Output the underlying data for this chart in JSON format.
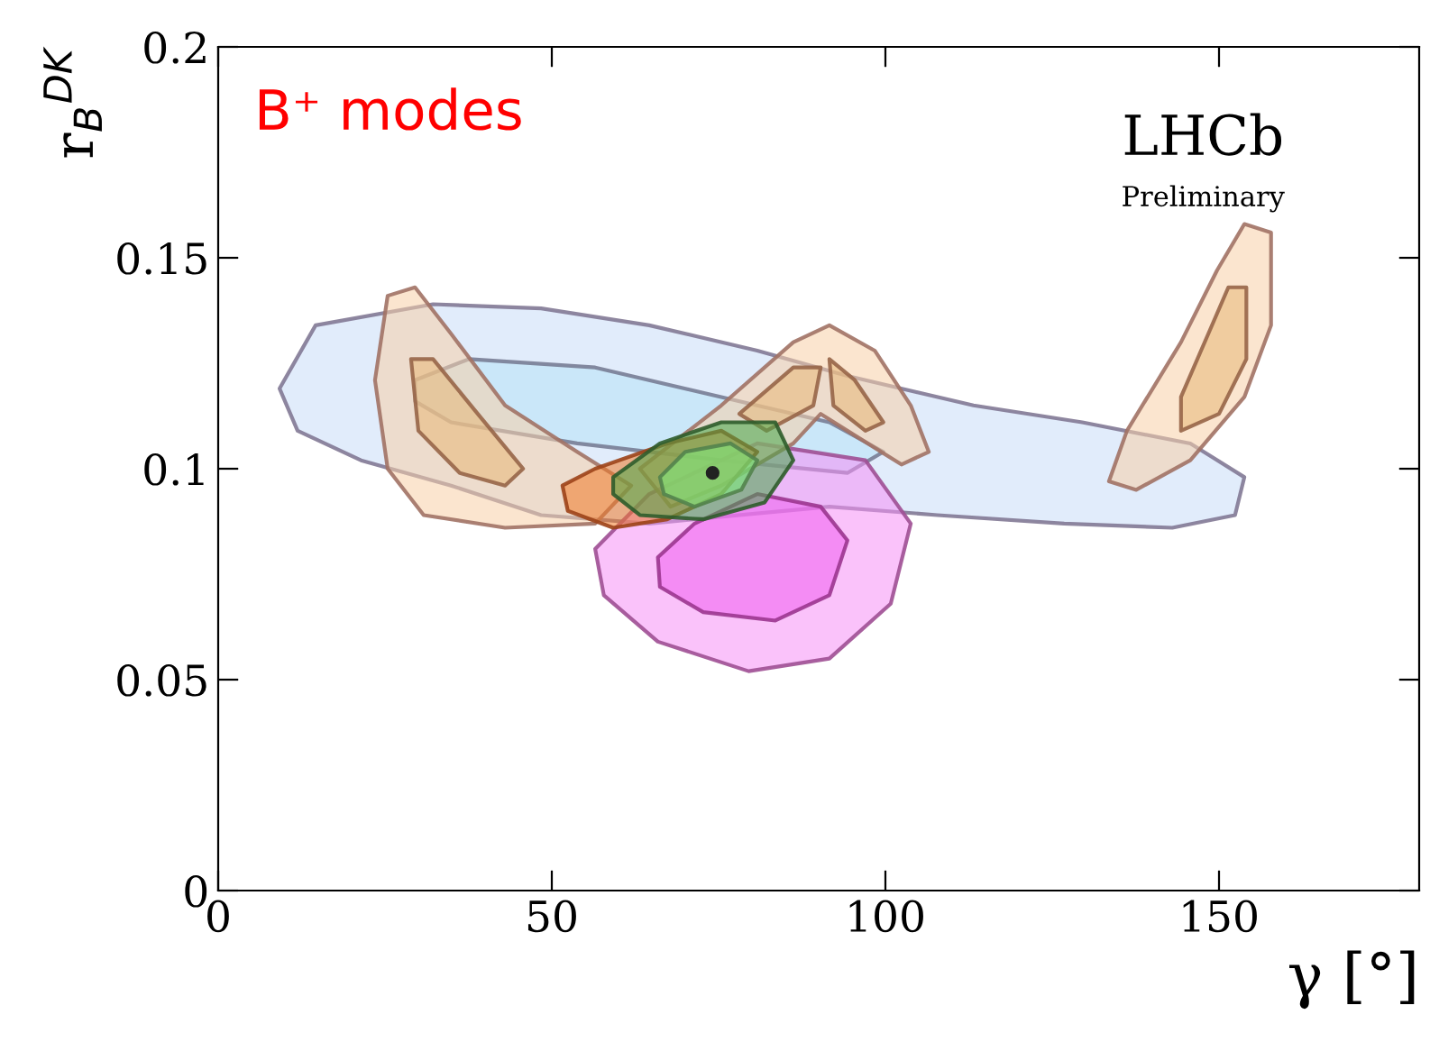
{
  "chart_data": {
    "type": "area",
    "xlabel": "γ [°]",
    "ylabel": "r$_{B}$$^{DK}$",
    "annotations": [
      "B⁺ modes",
      "LHCb",
      "Preliminary"
    ],
    "xlim": [
      0,
      180
    ],
    "ylim": [
      0,
      0.2
    ],
    "xticks": [
      0,
      50,
      100,
      150
    ],
    "yticks": [
      0,
      0.05,
      0.1,
      0.15,
      0.2
    ],
    "grid": false,
    "legend": false,
    "series": [
      {
        "color": "#c8dcf8",
        "x": [
          9.2,
          14.6,
          32.2,
          48.4,
          64.6,
          80.8,
          94.3,
          113.2,
          129.5,
          145.7,
          153.8,
          152.4,
          143.0,
          126.8,
          107.8,
          91.6,
          64.6,
          48.4,
          34.9,
          21.4,
          11.9
        ],
        "values": [
          0.119,
          0.134,
          0.139,
          0.138,
          0.134,
          0.128,
          0.122,
          0.115,
          0.111,
          0.106,
          0.098,
          0.089,
          0.086,
          0.087,
          0.089,
          0.091,
          0.087,
          0.089,
          0.096,
          0.102,
          0.109
        ]
      },
      {
        "color": "#b8e4f8",
        "x": [
          29.5,
          37.6,
          56.5,
          75.4,
          91.6,
          99.7,
          94.3,
          75.4,
          53.8,
          34.9,
          29.5
        ],
        "values": [
          0.121,
          0.126,
          0.124,
          0.117,
          0.111,
          0.104,
          0.099,
          0.102,
          0.106,
          0.111,
          0.116
        ]
      },
      {
        "color": "#f590f5",
        "x": [
          56.5,
          64.6,
          80.8,
          97.0,
          103.8,
          100.8,
          91.6,
          79.5,
          65.9,
          57.8
        ],
        "values": [
          0.081,
          0.094,
          0.106,
          0.102,
          0.087,
          0.068,
          0.055,
          0.052,
          0.059,
          0.07
        ]
      },
      {
        "color": "#ee60ee",
        "x": [
          65.9,
          71.4,
          80.8,
          90.3,
          94.3,
          91.6,
          83.5,
          72.7,
          66.2
        ],
        "values": [
          0.079,
          0.087,
          0.094,
          0.091,
          0.083,
          0.07,
          0.064,
          0.066,
          0.072
        ]
      },
      {
        "color": "#f8d0a8",
        "x": [
          25.4,
          29.5,
          34.9,
          43.0,
          53.8,
          61.9,
          56.5,
          43.0,
          30.8,
          25.4,
          23.5
        ],
        "values": [
          0.141,
          0.143,
          0.132,
          0.115,
          0.104,
          0.096,
          0.087,
          0.086,
          0.089,
          0.1,
          0.121
        ]
      },
      {
        "color": "#e8b878",
        "x": [
          28.9,
          32.2,
          38.9,
          45.7,
          43.0,
          36.2,
          30.0
        ],
        "values": [
          0.126,
          0.126,
          0.113,
          0.1,
          0.096,
          0.099,
          0.109
        ]
      },
      {
        "color": "#f8d0a8",
        "x": [
          63.2,
          75.4,
          86.2,
          91.6,
          98.4,
          103.8,
          106.5,
          102.4,
          94.3,
          90.3,
          86.2,
          75.4,
          67.8
        ],
        "values": [
          0.1,
          0.115,
          0.13,
          0.134,
          0.128,
          0.115,
          0.104,
          0.101,
          0.109,
          0.113,
          0.106,
          0.096,
          0.091
        ]
      },
      {
        "color": "#e8b878",
        "x": [
          78.1,
          86.2,
          90.3,
          89.2,
          82.2
        ],
        "values": [
          0.113,
          0.124,
          0.124,
          0.115,
          0.109
        ]
      },
      {
        "color": "#e8b878",
        "x": [
          91.6,
          95.4,
          99.7,
          97.0,
          92.2
        ],
        "values": [
          0.126,
          0.121,
          0.111,
          0.109,
          0.115
        ]
      },
      {
        "color": "#f8d0a8",
        "x": [
          153.8,
          157.8,
          157.8,
          153.8,
          145.7,
          137.6,
          133.5,
          136.2,
          144.3,
          149.7
        ],
        "values": [
          0.158,
          0.156,
          0.134,
          0.117,
          0.102,
          0.095,
          0.097,
          0.109,
          0.13,
          0.147
        ]
      },
      {
        "color": "#e8b878",
        "x": [
          151.4,
          154.1,
          154.1,
          150.0,
          144.3,
          144.3,
          148.4
        ],
        "values": [
          0.143,
          0.143,
          0.126,
          0.113,
          0.109,
          0.117,
          0.132
        ]
      },
      {
        "color": "#f07a28",
        "x": [
          51.6,
          56.5,
          67.3,
          75.4,
          80.8,
          75.4,
          67.3,
          59.2,
          52.4
        ],
        "values": [
          0.096,
          0.1,
          0.106,
          0.109,
          0.104,
          0.094,
          0.088,
          0.086,
          0.09
        ]
      },
      {
        "color": "#48a848",
        "x": [
          59.2,
          66.2,
          75.4,
          83.5,
          86.2,
          81.9,
          72.7,
          63.2,
          59.2
        ],
        "values": [
          0.098,
          0.106,
          0.111,
          0.111,
          0.102,
          0.092,
          0.088,
          0.089,
          0.094
        ]
      },
      {
        "color": "#80ee80",
        "x": [
          66.2,
          70.0,
          76.8,
          80.8,
          78.4,
          71.4,
          66.8
        ],
        "values": [
          0.098,
          0.104,
          0.106,
          0.102,
          0.095,
          0.091,
          0.094
        ]
      },
      {
        "type": "scatter",
        "color": "#222222",
        "marker": "circle",
        "x": [
          74.1
        ],
        "values": [
          0.099
        ]
      }
    ]
  }
}
